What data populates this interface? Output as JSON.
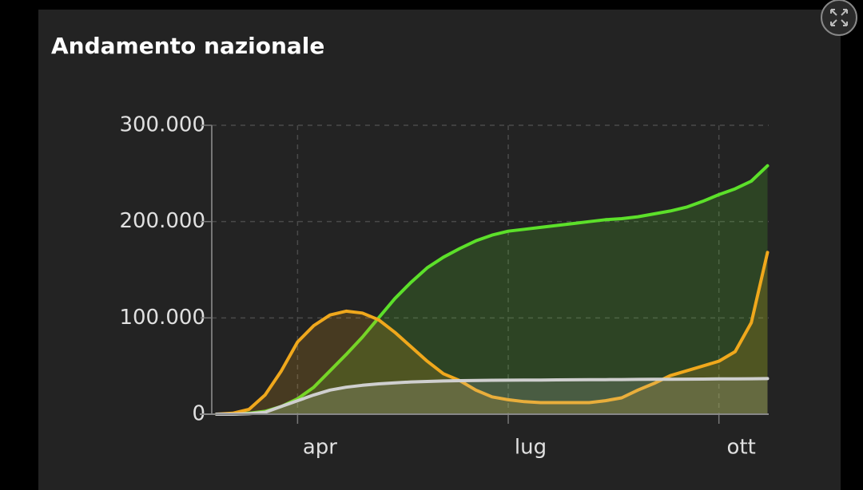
{
  "chart_data": {
    "type": "area",
    "title": "Andamento nazionale",
    "categories": [
      null,
      null,
      null,
      null,
      null,
      "apr",
      null,
      null,
      null,
      null,
      null,
      null,
      null,
      null,
      null,
      null,
      null,
      null,
      "lug",
      null,
      null,
      null,
      null,
      null,
      null,
      null,
      null,
      null,
      null,
      null,
      null,
      "ott",
      null,
      null,
      null
    ],
    "series": [
      {
        "color": "#5ce02a",
        "values": [
          0,
          0,
          1000,
          3000,
          8000,
          16000,
          28000,
          45000,
          62000,
          80000,
          100000,
          120000,
          137000,
          152000,
          163000,
          172000,
          180000,
          186000,
          190000,
          192000,
          194000,
          196000,
          198000,
          200000,
          202000,
          203000,
          205000,
          208000,
          211000,
          215000,
          221000,
          228000,
          234000,
          242000,
          258000
        ]
      },
      {
        "color": "#f0a81c",
        "values": [
          0,
          1000,
          5000,
          20000,
          45000,
          75000,
          92000,
          103000,
          107000,
          105000,
          98000,
          85000,
          70000,
          55000,
          42000,
          35000,
          25000,
          18000,
          15000,
          13000,
          12000,
          12000,
          12000,
          12000,
          14000,
          17000,
          25000,
          32000,
          40000,
          45000,
          50000,
          55000,
          65000,
          95000,
          168000
        ]
      },
      {
        "color": "#cfcfcf",
        "values": [
          0,
          0,
          500,
          2000,
          8000,
          14000,
          20000,
          25000,
          28000,
          30000,
          31500,
          32500,
          33500,
          34000,
          34500,
          34800,
          35000,
          35200,
          35300,
          35400,
          35500,
          35600,
          35700,
          35800,
          35900,
          36000,
          36100,
          36200,
          36300,
          36400,
          36500,
          36600,
          36700,
          36800,
          37000
        ]
      }
    ],
    "ylim": [
      0,
      300000
    ],
    "yticks": [
      0,
      {
        "value": 100000,
        "label": "100.000"
      },
      {
        "value": 200000,
        "label": "200.000"
      },
      {
        "value": 300000,
        "label": "300.000"
      }
    ],
    "grid": true
  }
}
